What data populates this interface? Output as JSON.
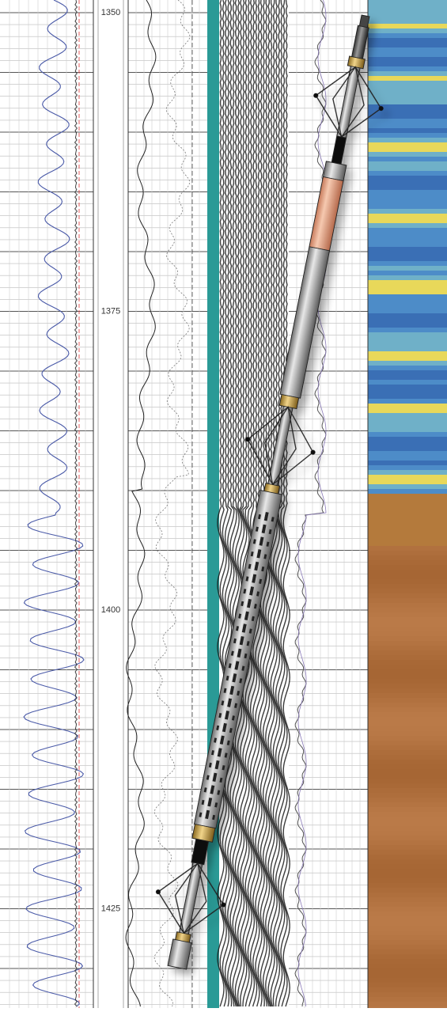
{
  "depth_track": {
    "labels": [
      1350,
      1375,
      1400,
      1425
    ]
  }
}
